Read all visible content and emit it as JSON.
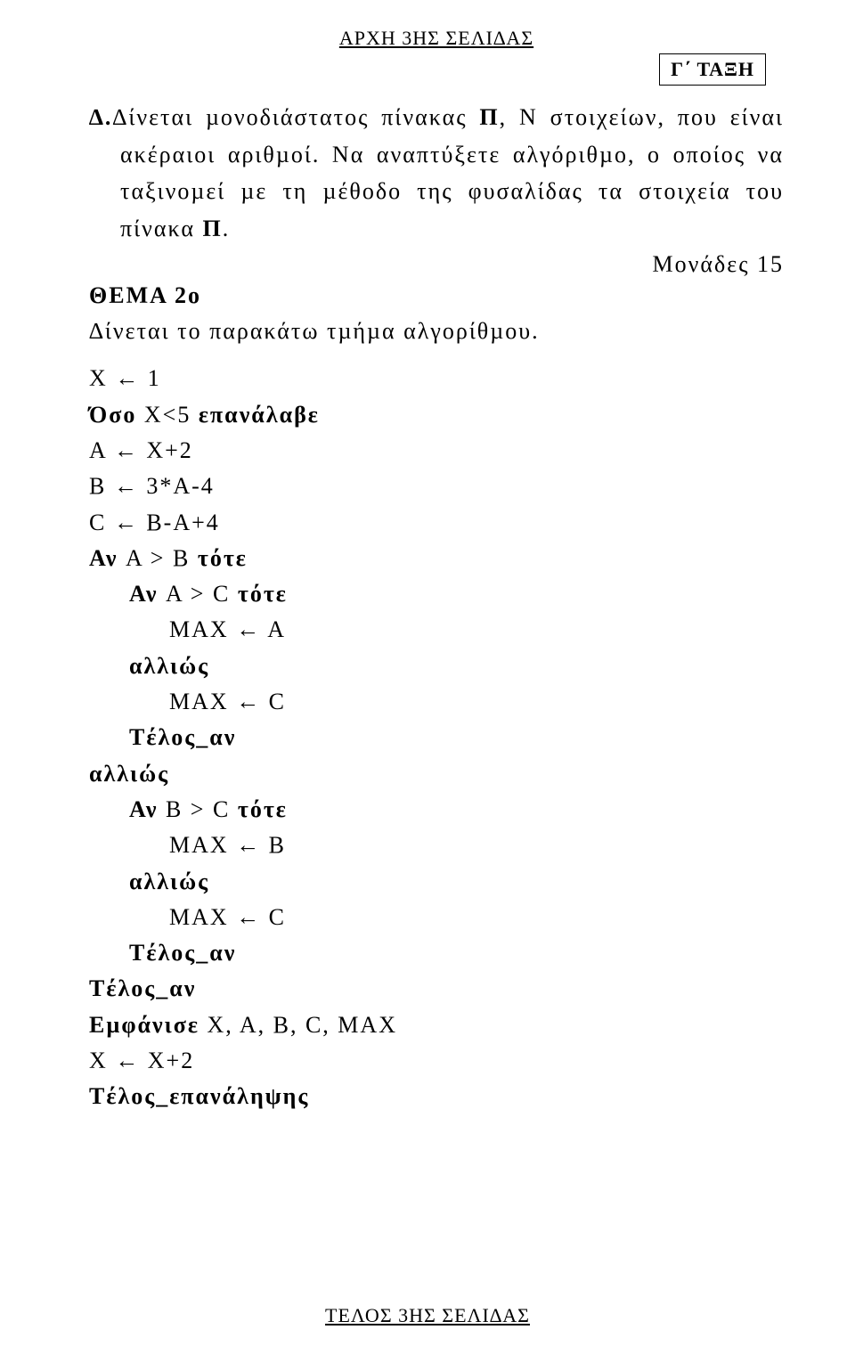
{
  "header": {
    "top": "ΑΡΧΗ 3ΗΣ ΣΕΛΙ∆ΑΣ",
    "classBox": "Γ΄ ΤΑΞΗ"
  },
  "sectionD": {
    "label": "∆.",
    "text1": "∆ίνεται µονοδιάστατος πίνακας ",
    "boldPi1": "Π",
    "text2": ", Ν στοιχείων, που είναι ακέραιοι αριθµοί. Να αναπτύξετε αλγόριθµο, ο οποίος να ταξινοµεί µε τη µέθοδο της φυσαλίδας τα στοιχεία του πίνακα ",
    "boldPi2": "Π",
    "text3": "."
  },
  "monades": "Μονάδες 15",
  "thema2": {
    "title": "ΘΕΜΑ 2ο",
    "intro": "∆ίνεται το παρακάτω τµήµα αλγορίθµου."
  },
  "code": {
    "l1a": "Χ ",
    "l1arrow": "←",
    "l1b": " 1",
    "l2a": "Όσο ",
    "l2b": "Χ<5 ",
    "l2c": "επανάλαβε",
    "l3a": "Α ",
    "l3arrow": "←",
    "l3b": " Χ+2",
    "l4a": "Β ",
    "l4arrow": "←",
    "l4b": " 3*Α-4",
    "l5a": "C ",
    "l5arrow": "←",
    "l5b": " Β-Α+4",
    "l6a": "Αν ",
    "l6b": "Α > Β ",
    "l6c": "τότε",
    "l7a": "Αν ",
    "l7b": "Α > C ",
    "l7c": "τότε",
    "l8a": "MAX ",
    "l8arrow": "←",
    "l8b": " A",
    "l9": "αλλιώς",
    "l10a": "MAX ",
    "l10arrow": "←",
    "l10b": " C",
    "l11": "Tέλος_αν",
    "l12": "αλλιώς",
    "l13a": "Αν ",
    "l13b": "B > C ",
    "l13c": "τότε",
    "l14a": "MAX ",
    "l14arrow": "←",
    "l14b": " Β",
    "l15": "αλλιώς",
    "l16a": "MAX ",
    "l16arrow": "←",
    "l16b": " C",
    "l17": "Tέλος_αν",
    "l18": "Tέλος_αν",
    "l19a": "Εµφάνισε ",
    "l19b": "Χ, Α, Β, C, MAX",
    "l20a": "Χ ",
    "l20arrow": "←",
    "l20b": " Χ+2",
    "l21": "Tέλος_επανάληψης"
  },
  "footer": "ΤΕΛΟΣ 3ΗΣ ΣΕΛΙ∆ΑΣ"
}
